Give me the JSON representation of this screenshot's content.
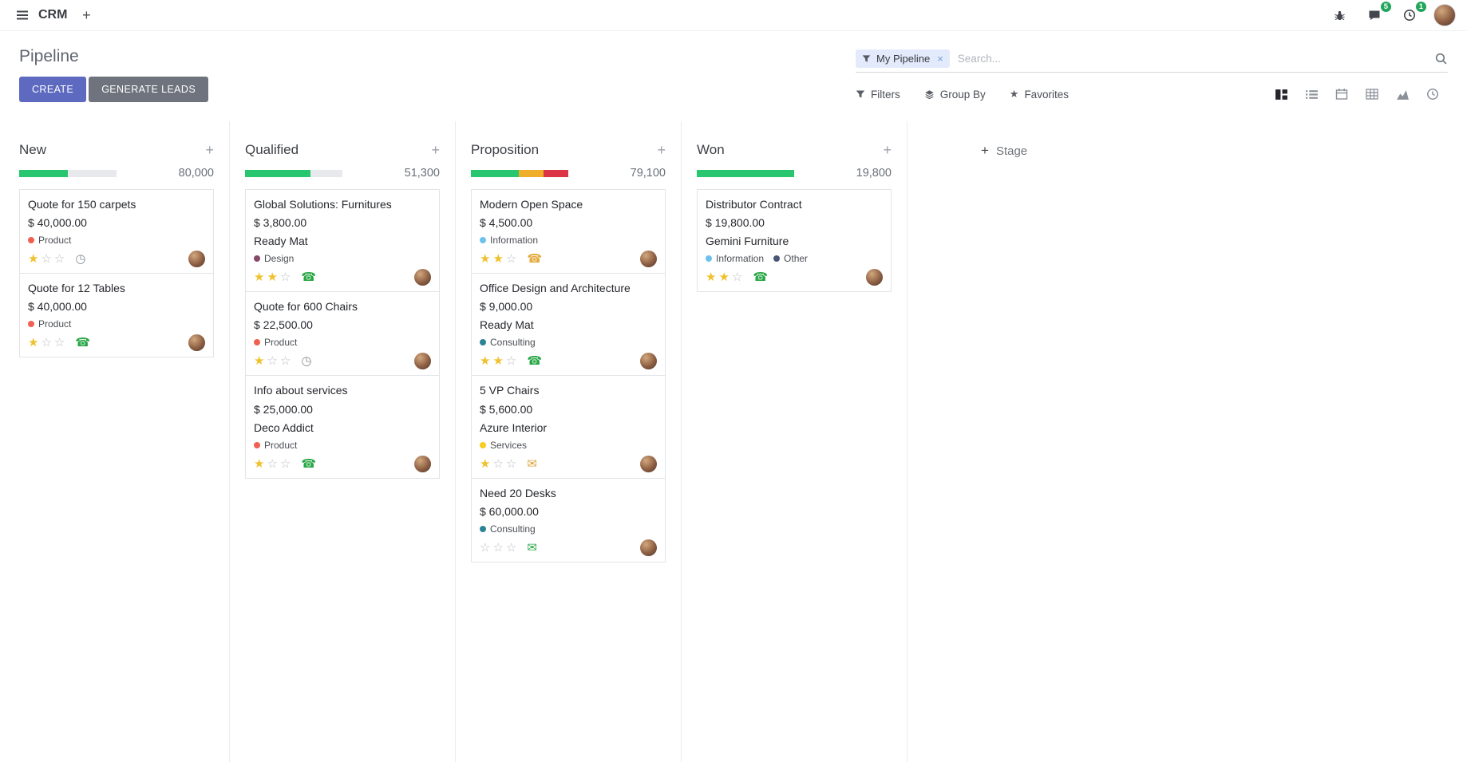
{
  "glyphs": {
    "plus": "+"
  },
  "navbar": {
    "app_name": "CRM",
    "messages_badge": "5",
    "activities_badge": "1"
  },
  "control": {
    "title": "Pipeline",
    "create_label": "CREATE",
    "generate_leads_label": "GENERATE LEADS",
    "filters_label": "Filters",
    "group_by_label": "Group By",
    "favorites_label": "Favorites",
    "search": {
      "facet": "My Pipeline",
      "placeholder": "Search...",
      "remove_facet": "×"
    }
  },
  "board": {
    "add_stage_label": "Stage",
    "columns": [
      {
        "name": "New",
        "total": "80,000",
        "progress": [
          {
            "color": "#28c76f",
            "pct": 50
          }
        ],
        "cards": [
          {
            "title": "Quote for 150 carpets",
            "amount": "$ 40,000.00",
            "tags": [
              {
                "label": "Product",
                "color": "#f06050"
              }
            ],
            "stars": 1,
            "activity": {
              "type": "clock",
              "glyph": "◷",
              "color": "#878d95"
            }
          },
          {
            "title": "Quote for 12 Tables",
            "amount": "$ 40,000.00",
            "tags": [
              {
                "label": "Product",
                "color": "#f06050"
              }
            ],
            "stars": 1,
            "activity": {
              "type": "phone",
              "glyph": "☎",
              "color": "#28a745"
            }
          }
        ]
      },
      {
        "name": "Qualified",
        "total": "51,300",
        "progress": [
          {
            "color": "#28c76f",
            "pct": 67
          }
        ],
        "cards": [
          {
            "title": "Global Solutions: Furnitures",
            "amount": "$ 3,800.00",
            "partner": "Ready Mat",
            "tags": [
              {
                "label": "Design",
                "color": "#874968"
              }
            ],
            "stars": 2,
            "activity": {
              "type": "phone",
              "glyph": "☎",
              "color": "#28a745"
            }
          },
          {
            "title": "Quote for 600 Chairs",
            "amount": "$ 22,500.00",
            "tags": [
              {
                "label": "Product",
                "color": "#f06050"
              }
            ],
            "stars": 1,
            "activity": {
              "type": "clock",
              "glyph": "◷",
              "color": "#878d95"
            }
          },
          {
            "title": "Info about services",
            "amount": "$ 25,000.00",
            "partner": "Deco Addict",
            "tags": [
              {
                "label": "Product",
                "color": "#f06050"
              }
            ],
            "stars": 1,
            "activity": {
              "type": "phone",
              "glyph": "☎",
              "color": "#28a745"
            }
          }
        ]
      },
      {
        "name": "Proposition",
        "total": "79,100",
        "progress": [
          {
            "color": "#28c76f",
            "pct": 49
          },
          {
            "color": "#f0ad27",
            "pct": 26
          },
          {
            "color": "#dc3545",
            "pct": 25
          }
        ],
        "cards": [
          {
            "title": "Modern Open Space",
            "amount": "$ 4,500.00",
            "tags": [
              {
                "label": "Information",
                "color": "#6cc1ed"
              }
            ],
            "stars": 2,
            "activity": {
              "type": "phone",
              "glyph": "☎",
              "color": "#e5a93b"
            }
          },
          {
            "title": "Office Design and Architecture",
            "amount": "$ 9,000.00",
            "partner": "Ready Mat",
            "tags": [
              {
                "label": "Consulting",
                "color": "#2c8397"
              }
            ],
            "stars": 2,
            "activity": {
              "type": "phone",
              "glyph": "☎",
              "color": "#28a745"
            }
          },
          {
            "title": "5 VP Chairs",
            "amount": "$ 5,600.00",
            "partner": "Azure Interior",
            "tags": [
              {
                "label": "Services",
                "color": "#f7cd1f"
              }
            ],
            "stars": 1,
            "activity": {
              "type": "envelope",
              "glyph": "✉",
              "color": "#dba23a"
            }
          },
          {
            "title": "Need 20 Desks",
            "amount": "$ 60,000.00",
            "tags": [
              {
                "label": "Consulting",
                "color": "#2c8397"
              }
            ],
            "stars": 0,
            "activity": {
              "type": "envelope",
              "glyph": "✉",
              "color": "#28a745"
            }
          }
        ]
      },
      {
        "name": "Won",
        "total": "19,800",
        "progress": [
          {
            "color": "#28c76f",
            "pct": 100
          }
        ],
        "cards": [
          {
            "title": "Distributor Contract",
            "amount": "$ 19,800.00",
            "partner": "Gemini Furniture",
            "tags": [
              {
                "label": "Information",
                "color": "#6cc1ed"
              },
              {
                "label": "Other",
                "color": "#475577"
              }
            ],
            "stars": 2,
            "activity": {
              "type": "phone",
              "glyph": "☎",
              "color": "#28a745"
            }
          }
        ]
      }
    ]
  }
}
